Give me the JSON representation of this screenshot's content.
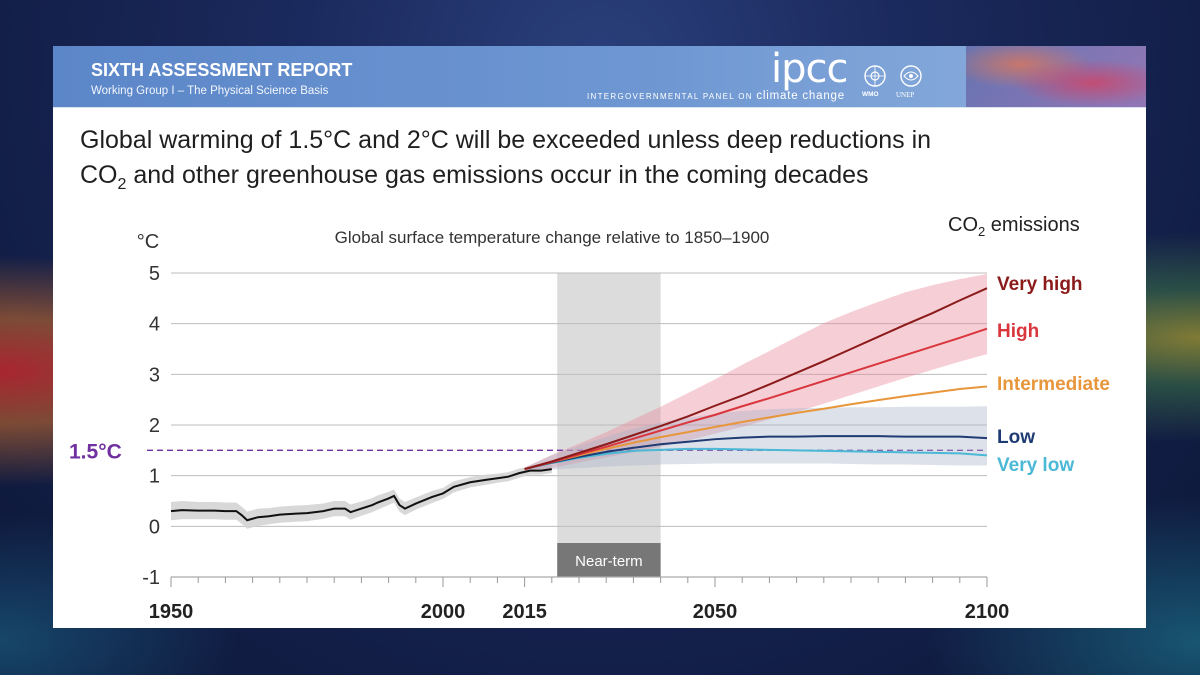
{
  "header": {
    "title": "SIXTH ASSESSMENT REPORT",
    "subtitle": "Working Group I – The Physical Science Basis",
    "logo_text": "ipcc",
    "tagline_caps": "INTERGOVERNMENTAL PANEL ON",
    "tagline_cc": "climate change",
    "wmo_label": "WMO",
    "unep_label": "UNEP"
  },
  "headline": {
    "line1": "Global warming of 1.5°C and 2°C will be exceeded unless deep reductions in",
    "line2_pre": "CO",
    "line2_sub": "2",
    "line2_post": " and other greenhouse gas emissions occur in the coming decades"
  },
  "chart_data": {
    "type": "line",
    "title": "Global surface temperature change relative to 1850–1900",
    "ylabel": "°C",
    "xlim": [
      1950,
      2100
    ],
    "ylim": [
      -1,
      5
    ],
    "yticks": [
      "5",
      "4",
      "3",
      "2",
      "1",
      "0",
      "-1"
    ],
    "xtick_labels": [
      {
        "value": 1950,
        "label": "1950"
      },
      {
        "value": 2000,
        "label": "2000"
      },
      {
        "value": 2015,
        "label": "2015"
      },
      {
        "value": 2050,
        "label": "2050"
      },
      {
        "value": 2100,
        "label": "2100"
      }
    ],
    "threshold": {
      "value": 1.5,
      "label": "1.5°C",
      "color": "#7030a0"
    },
    "near_term": {
      "label": "Near-term",
      "start": 2021,
      "end": 2040
    },
    "legend_title_pre": "CO",
    "legend_title_sub": "2",
    "legend_title_post": " emissions",
    "historical": {
      "color": "#111111",
      "x": [
        1950,
        1952,
        1955,
        1958,
        1960,
        1962,
        1963,
        1964,
        1966,
        1968,
        1970,
        1973,
        1975,
        1978,
        1980,
        1982,
        1983,
        1985,
        1987,
        1988,
        1990,
        1991,
        1992,
        1993,
        1995,
        1998,
        2000,
        2002,
        2005,
        2008,
        2010,
        2012,
        2014,
        2016,
        2018,
        2020
      ],
      "y": [
        0.3,
        0.32,
        0.31,
        0.31,
        0.3,
        0.3,
        0.22,
        0.12,
        0.18,
        0.2,
        0.23,
        0.25,
        0.26,
        0.3,
        0.35,
        0.35,
        0.28,
        0.35,
        0.42,
        0.47,
        0.55,
        0.6,
        0.42,
        0.35,
        0.45,
        0.58,
        0.65,
        0.78,
        0.87,
        0.92,
        0.95,
        0.98,
        1.05,
        1.1,
        1.1,
        1.13
      ],
      "band_width": [
        0.18,
        0.18,
        0.17,
        0.17,
        0.17,
        0.17,
        0.17,
        0.17,
        0.17,
        0.16,
        0.16,
        0.16,
        0.16,
        0.15,
        0.15,
        0.15,
        0.15,
        0.14,
        0.14,
        0.14,
        0.13,
        0.13,
        0.13,
        0.13,
        0.12,
        0.12,
        0.11,
        0.11,
        0.1,
        0.1,
        0.09,
        0.09,
        0.09,
        0.08,
        0.08,
        0.08
      ]
    },
    "projection_x": [
      2015,
      2020,
      2025,
      2030,
      2035,
      2040,
      2045,
      2050,
      2055,
      2060,
      2065,
      2070,
      2075,
      2080,
      2085,
      2090,
      2095,
      2100
    ],
    "series": [
      {
        "name": "Very high",
        "color": "#8b1a1a",
        "y": [
          1.13,
          1.28,
          1.45,
          1.62,
          1.8,
          1.98,
          2.17,
          2.38,
          2.58,
          2.8,
          3.03,
          3.26,
          3.5,
          3.74,
          3.98,
          4.21,
          4.46,
          4.7
        ],
        "band_lo": [
          1.1,
          1.15,
          1.26,
          1.36,
          1.46,
          1.57,
          1.69,
          1.83,
          1.96,
          2.11,
          2.26,
          2.42,
          2.59,
          2.76,
          2.93,
          3.09,
          3.25,
          3.4
        ],
        "band_hi": [
          1.16,
          1.41,
          1.63,
          1.86,
          2.11,
          2.36,
          2.63,
          2.9,
          3.19,
          3.46,
          3.74,
          4.01,
          4.23,
          4.43,
          4.62,
          4.76,
          4.88,
          4.98
        ]
      },
      {
        "name": "High",
        "color": "#d9363e",
        "y": [
          1.13,
          1.27,
          1.42,
          1.57,
          1.73,
          1.89,
          2.05,
          2.2,
          2.37,
          2.53,
          2.7,
          2.87,
          3.04,
          3.21,
          3.38,
          3.55,
          3.72,
          3.9
        ]
      },
      {
        "name": "Intermediate",
        "color": "#e8963c",
        "y": [
          1.13,
          1.27,
          1.4,
          1.53,
          1.65,
          1.76,
          1.86,
          1.96,
          2.06,
          2.15,
          2.24,
          2.32,
          2.41,
          2.49,
          2.57,
          2.64,
          2.71,
          2.76
        ]
      },
      {
        "name": "Low",
        "color": "#1f3b73",
        "y": [
          1.13,
          1.26,
          1.37,
          1.47,
          1.55,
          1.62,
          1.67,
          1.72,
          1.75,
          1.77,
          1.77,
          1.78,
          1.78,
          1.78,
          1.77,
          1.77,
          1.77,
          1.74
        ],
        "band_lo": [
          1.1,
          1.12,
          1.15,
          1.18,
          1.2,
          1.22,
          1.23,
          1.24,
          1.24,
          1.24,
          1.24,
          1.24,
          1.23,
          1.22,
          1.22,
          1.21,
          1.2,
          1.2
        ],
        "band_hi": [
          1.16,
          1.4,
          1.59,
          1.77,
          1.93,
          2.05,
          2.14,
          2.22,
          2.28,
          2.31,
          2.33,
          2.34,
          2.35,
          2.35,
          2.36,
          2.36,
          2.36,
          2.37
        ]
      },
      {
        "name": "Very low",
        "color": "#4bb8d6",
        "y": [
          1.13,
          1.25,
          1.35,
          1.43,
          1.49,
          1.51,
          1.53,
          1.53,
          1.52,
          1.51,
          1.5,
          1.49,
          1.48,
          1.47,
          1.46,
          1.45,
          1.44,
          1.4
        ]
      }
    ]
  }
}
